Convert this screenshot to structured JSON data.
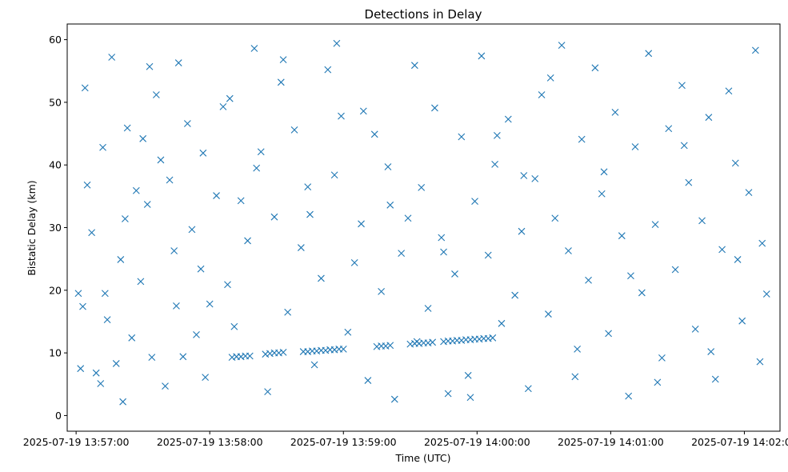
{
  "chart_data": {
    "type": "scatter",
    "title": "Detections in Delay",
    "xlabel": "Time (UTC)",
    "ylabel": "Bistatic Delay (km)",
    "xlim": [
      "2025-07-19 13:56:56",
      "2025-07-19 14:02:16"
    ],
    "ylim": [
      -2.5,
      62.5
    ],
    "xticks": [
      "2025-07-19 13:57:00",
      "2025-07-19 13:58:00",
      "2025-07-19 13:59:00",
      "2025-07-19 14:00:00",
      "2025-07-19 14:01:00",
      "2025-07-19 14:02:00"
    ],
    "yticks": [
      0,
      10,
      20,
      30,
      40,
      50,
      60
    ],
    "marker": "x",
    "color": "#1f77b4",
    "grid": false,
    "series": [
      {
        "x": [
          "2025-07-19 13:57:01",
          "2025-07-19 13:57:02",
          "2025-07-19 13:57:03",
          "2025-07-19 13:57:05",
          "2025-07-19 13:57:07",
          "2025-07-19 13:57:09",
          "2025-07-19 13:57:11",
          "2025-07-19 13:57:13",
          "2025-07-19 13:57:14",
          "2025-07-19 13:57:16",
          "2025-07-19 13:57:18",
          "2025-07-19 13:57:20",
          "2025-07-19 13:57:21",
          "2025-07-19 13:57:23",
          "2025-07-19 13:57:25",
          "2025-07-19 13:57:27",
          "2025-07-19 13:57:29",
          "2025-07-19 13:57:30",
          "2025-07-19 13:57:32",
          "2025-07-19 13:57:34",
          "2025-07-19 13:57:36",
          "2025-07-19 13:57:38",
          "2025-07-19 13:57:40",
          "2025-07-19 13:57:42",
          "2025-07-19 13:57:44",
          "2025-07-19 13:57:46",
          "2025-07-19 13:57:48",
          "2025-07-19 13:57:50",
          "2025-07-19 13:57:52",
          "2025-07-19 13:57:54",
          "2025-07-19 13:57:56",
          "2025-07-19 13:57:58",
          "2025-07-19 13:58:00",
          "2025-07-19 13:58:03",
          "2025-07-19 13:58:06",
          "2025-07-19 13:58:08",
          "2025-07-19 13:58:11",
          "2025-07-19 13:58:14",
          "2025-07-19 13:58:17",
          "2025-07-19 13:58:20",
          "2025-07-19 13:58:23",
          "2025-07-19 13:58:26",
          "2025-07-19 13:58:29",
          "2025-07-19 13:58:32",
          "2025-07-19 13:58:35",
          "2025-07-19 13:58:38",
          "2025-07-19 13:58:41",
          "2025-07-19 13:58:44",
          "2025-07-19 13:58:47",
          "2025-07-19 13:58:50",
          "2025-07-19 13:58:53",
          "2025-07-19 13:58:56",
          "2025-07-19 13:58:59",
          "2025-07-19 13:59:02",
          "2025-07-19 13:59:05",
          "2025-07-19 13:59:08",
          "2025-07-19 13:59:11",
          "2025-07-19 13:59:14",
          "2025-07-19 13:59:17",
          "2025-07-19 13:59:20",
          "2025-07-19 13:59:23",
          "2025-07-19 13:59:26",
          "2025-07-19 13:59:29",
          "2025-07-19 13:59:32",
          "2025-07-19 13:59:35",
          "2025-07-19 13:59:38",
          "2025-07-19 13:59:41",
          "2025-07-19 13:59:44",
          "2025-07-19 13:59:47",
          "2025-07-19 13:59:50",
          "2025-07-19 13:59:53",
          "2025-07-19 13:59:56",
          "2025-07-19 13:59:59",
          "2025-07-19 14:00:02",
          "2025-07-19 14:00:05",
          "2025-07-19 14:00:08",
          "2025-07-19 14:00:11",
          "2025-07-19 14:00:14",
          "2025-07-19 14:00:17",
          "2025-07-19 14:00:20",
          "2025-07-19 14:00:23",
          "2025-07-19 14:00:26",
          "2025-07-19 14:00:29",
          "2025-07-19 14:00:32",
          "2025-07-19 14:00:35",
          "2025-07-19 14:00:38",
          "2025-07-19 14:00:41",
          "2025-07-19 14:00:44",
          "2025-07-19 14:00:47",
          "2025-07-19 14:00:50",
          "2025-07-19 14:00:53",
          "2025-07-19 14:00:56",
          "2025-07-19 14:00:59",
          "2025-07-19 14:01:02",
          "2025-07-19 14:01:05",
          "2025-07-19 14:01:08",
          "2025-07-19 14:01:11",
          "2025-07-19 14:01:14",
          "2025-07-19 14:01:17",
          "2025-07-19 14:01:20",
          "2025-07-19 14:01:23",
          "2025-07-19 14:01:26",
          "2025-07-19 14:01:29",
          "2025-07-19 14:01:32",
          "2025-07-19 14:01:35",
          "2025-07-19 14:01:38",
          "2025-07-19 14:01:41",
          "2025-07-19 14:01:44",
          "2025-07-19 14:01:47",
          "2025-07-19 14:01:50",
          "2025-07-19 14:01:53",
          "2025-07-19 14:01:56",
          "2025-07-19 14:01:59",
          "2025-07-19 14:02:02",
          "2025-07-19 14:02:05",
          "2025-07-19 14:02:08",
          "2025-07-19 14:02:10",
          "2025-07-19 13:57:04",
          "2025-07-19 13:57:12",
          "2025-07-19 13:57:22",
          "2025-07-19 13:57:33",
          "2025-07-19 13:57:45",
          "2025-07-19 13:57:57",
          "2025-07-19 13:58:09",
          "2025-07-19 13:58:21",
          "2025-07-19 13:58:33",
          "2025-07-19 13:58:45",
          "2025-07-19 13:58:57",
          "2025-07-19 13:59:09",
          "2025-07-19 13:59:21",
          "2025-07-19 13:59:33",
          "2025-07-19 13:59:45",
          "2025-07-19 13:59:57",
          "2025-07-19 14:00:09",
          "2025-07-19 14:00:21",
          "2025-07-19 14:00:33",
          "2025-07-19 14:00:45",
          "2025-07-19 14:00:57",
          "2025-07-19 14:01:09",
          "2025-07-19 14:01:21",
          "2025-07-19 14:01:33",
          "2025-07-19 14:01:45",
          "2025-07-19 14:01:57",
          "2025-07-19 14:02:07",
          "2025-07-19 13:58:10",
          "2025-07-19 13:58:12",
          "2025-07-19 13:58:14",
          "2025-07-19 13:58:16",
          "2025-07-19 13:58:18",
          "2025-07-19 13:58:25",
          "2025-07-19 13:58:27",
          "2025-07-19 13:58:29",
          "2025-07-19 13:58:31",
          "2025-07-19 13:58:33",
          "2025-07-19 13:58:42",
          "2025-07-19 13:58:44",
          "2025-07-19 13:58:46",
          "2025-07-19 13:58:48",
          "2025-07-19 13:58:50",
          "2025-07-19 13:58:52",
          "2025-07-19 13:58:54",
          "2025-07-19 13:58:56",
          "2025-07-19 13:58:58",
          "2025-07-19 13:59:00",
          "2025-07-19 13:59:15",
          "2025-07-19 13:59:17",
          "2025-07-19 13:59:19",
          "2025-07-19 13:59:21",
          "2025-07-19 13:59:30",
          "2025-07-19 13:59:32",
          "2025-07-19 13:59:34",
          "2025-07-19 13:59:36",
          "2025-07-19 13:59:38",
          "2025-07-19 13:59:40",
          "2025-07-19 13:59:45",
          "2025-07-19 13:59:47",
          "2025-07-19 13:59:49",
          "2025-07-19 13:59:51",
          "2025-07-19 13:59:53",
          "2025-07-19 13:59:55",
          "2025-07-19 13:59:57",
          "2025-07-19 13:59:59",
          "2025-07-19 14:00:01",
          "2025-07-19 14:00:03",
          "2025-07-19 14:00:05",
          "2025-07-19 14:00:07"
        ],
        "y": [
          19.5,
          7.5,
          17.4,
          36.8,
          29.2,
          6.8,
          5.1,
          19.5,
          15.3,
          57.2,
          8.3,
          24.9,
          2.2,
          45.9,
          12.4,
          35.9,
          21.4,
          44.2,
          33.7,
          9.3,
          51.2,
          40.8,
          4.7,
          37.6,
          26.3,
          56.3,
          9.4,
          46.6,
          29.7,
          12.9,
          23.4,
          6.1,
          17.8,
          35.1,
          49.3,
          20.9,
          14.2,
          34.3,
          27.9,
          58.6,
          42.1,
          3.8,
          31.7,
          53.2,
          16.5,
          45.6,
          26.8,
          36.5,
          8.1,
          21.9,
          55.2,
          38.4,
          47.8,
          13.3,
          24.4,
          30.6,
          5.6,
          44.9,
          19.8,
          39.7,
          2.6,
          25.9,
          31.5,
          55.9,
          36.4,
          17.1,
          49.1,
          28.4,
          3.5,
          22.6,
          44.5,
          6.4,
          34.2,
          57.4,
          25.6,
          40.1,
          14.7,
          47.3,
          19.2,
          29.4,
          4.3,
          37.8,
          51.2,
          16.2,
          31.5,
          59.1,
          26.3,
          6.2,
          44.1,
          21.6,
          55.5,
          35.4,
          13.1,
          48.4,
          28.7,
          3.1,
          42.9,
          19.6,
          57.8,
          30.5,
          9.2,
          45.8,
          23.3,
          52.7,
          37.2,
          13.8,
          31.1,
          47.6,
          5.8,
          26.5,
          51.8,
          40.3,
          15.1,
          35.6,
          58.3,
          27.5,
          19.4,
          52.3,
          42.8,
          31.4,
          55.7,
          17.5,
          41.9,
          50.6,
          39.5,
          56.8,
          32.1,
          59.4,
          48.6,
          33.6,
          11.8,
          26.1,
          2.9,
          44.7,
          38.3,
          53.9,
          10.6,
          38.9,
          22.3,
          5.3,
          43.1,
          10.2,
          24.9,
          8.6,
          9.3,
          9.4,
          9.4,
          9.5,
          9.5,
          9.8,
          9.9,
          10.0,
          10.0,
          10.1,
          10.2,
          10.2,
          10.3,
          10.3,
          10.4,
          10.4,
          10.5,
          10.5,
          10.6,
          10.6,
          11.0,
          11.1,
          11.1,
          11.2,
          11.4,
          11.5,
          11.5,
          11.6,
          11.6,
          11.7,
          11.8,
          11.9,
          11.9,
          12.0,
          12.0,
          12.1,
          12.1,
          12.2,
          12.2,
          12.3,
          12.3,
          12.4
        ]
      }
    ]
  }
}
